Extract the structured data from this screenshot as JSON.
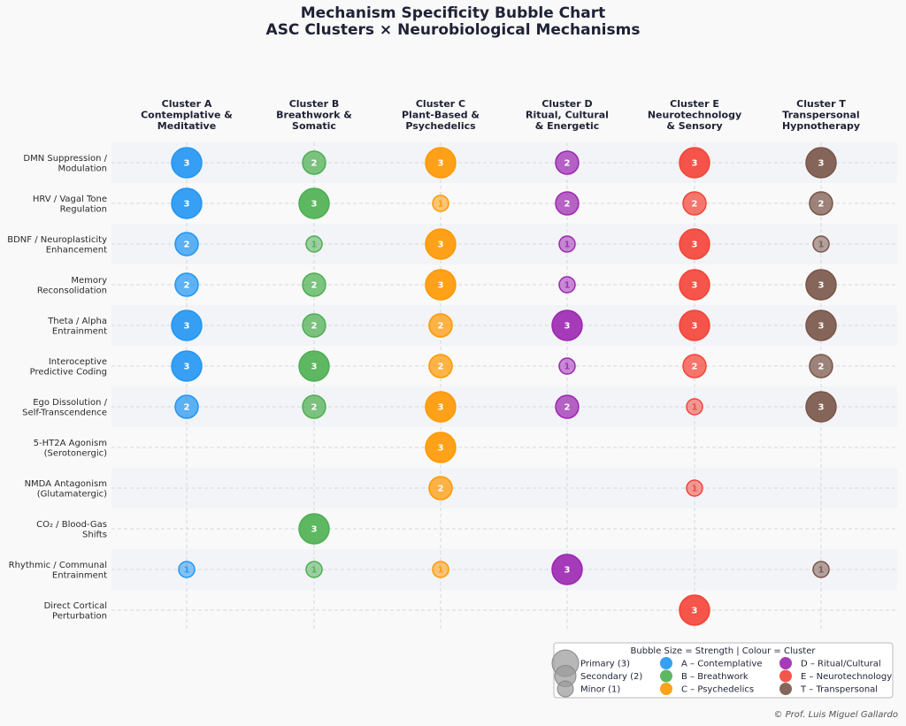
{
  "chart_data": {
    "type": "scatter",
    "title": "Mechanism Specificity Bubble Chart",
    "subtitle": "ASC Clusters × Neurobiological Mechanisms",
    "columns": [
      {
        "lines": [
          "Cluster A",
          "Contemplative &",
          "Meditative"
        ],
        "color": "#2196f3"
      },
      {
        "lines": [
          "Cluster B",
          "Breathwork &",
          "Somatic"
        ],
        "color": "#4caf50"
      },
      {
        "lines": [
          "Cluster C",
          "Plant-Based &",
          "Psychedelics"
        ],
        "color": "#ff9800"
      },
      {
        "lines": [
          "Cluster D",
          "Ritual, Cultural",
          "& Energetic"
        ],
        "color": "#9c27b0"
      },
      {
        "lines": [
          "Cluster E",
          "Neurotechnology",
          "& Sensory"
        ],
        "color": "#f44336"
      },
      {
        "lines": [
          "Cluster T",
          "Transpersonal",
          "Hypnotherapy"
        ],
        "color": "#795548"
      }
    ],
    "rows": [
      {
        "lines": [
          "DMN Suppression /",
          "Modulation"
        ],
        "values": [
          3,
          2,
          3,
          2,
          3,
          3
        ]
      },
      {
        "lines": [
          "HRV / Vagal Tone",
          "Regulation"
        ],
        "values": [
          3,
          3,
          1,
          2,
          2,
          2
        ]
      },
      {
        "lines": [
          "BDNF / Neuroplasticity",
          "Enhancement"
        ],
        "values": [
          2,
          1,
          3,
          1,
          3,
          1
        ]
      },
      {
        "lines": [
          "Memory",
          "Reconsolidation"
        ],
        "values": [
          2,
          2,
          3,
          1,
          3,
          3
        ]
      },
      {
        "lines": [
          "Theta / Alpha",
          "Entrainment"
        ],
        "values": [
          3,
          2,
          2,
          3,
          3,
          3
        ]
      },
      {
        "lines": [
          "Interoceptive",
          "Predictive Coding"
        ],
        "values": [
          3,
          3,
          2,
          1,
          2,
          2
        ]
      },
      {
        "lines": [
          "Ego Dissolution /",
          "Self-Transcendence"
        ],
        "values": [
          2,
          2,
          3,
          2,
          1,
          3
        ]
      },
      {
        "lines": [
          "5-HT2A Agonism",
          "(Serotonergic)"
        ],
        "values": [
          0,
          0,
          3,
          0,
          0,
          0
        ]
      },
      {
        "lines": [
          "NMDA Antagonism",
          "(Glutamatergic)"
        ],
        "values": [
          0,
          0,
          2,
          0,
          1,
          0
        ]
      },
      {
        "lines": [
          "CO₂ / Blood-Gas",
          "Shifts"
        ],
        "values": [
          0,
          3,
          0,
          0,
          0,
          0
        ]
      },
      {
        "lines": [
          "Rhythmic / Communal",
          "Entrainment"
        ],
        "values": [
          1,
          1,
          1,
          3,
          0,
          1
        ]
      },
      {
        "lines": [
          "Direct Cortical",
          "Perturbation"
        ],
        "values": [
          0,
          0,
          0,
          0,
          3,
          0
        ]
      }
    ],
    "legend": {
      "title": "Bubble Size = Strength  |  Colour = Cluster",
      "sizes": [
        {
          "label": "Primary (3)",
          "value": 3
        },
        {
          "label": "Secondary (2)",
          "value": 2
        },
        {
          "label": "Minor (1)",
          "value": 1
        }
      ],
      "clusters": [
        "A – Contemplative",
        "B – Breathwork",
        "C – Psychedelics",
        "D – Ritual/Cultural",
        "E – Neurotechnology",
        "T – Transpersonal"
      ],
      "position": "bottom-right"
    },
    "credit": "© Prof. Luis Miguel Gallardo"
  }
}
